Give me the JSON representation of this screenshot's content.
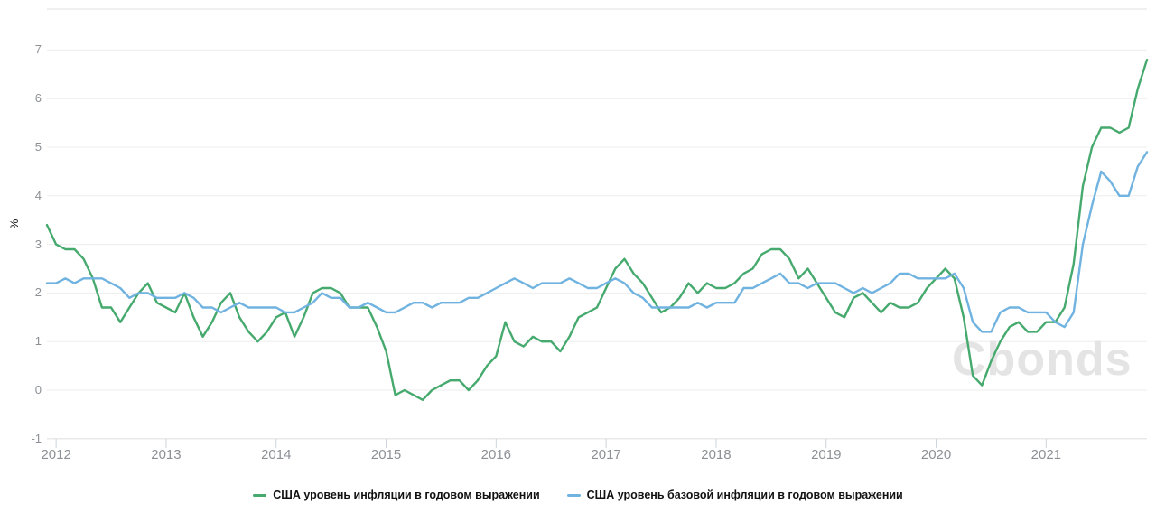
{
  "chart_data": {
    "type": "line",
    "ylabel": "%",
    "x_start": "2011-11",
    "x_end": "2021-11",
    "x_frequency": "monthly",
    "x_tick_labels": [
      "2012",
      "2013",
      "2014",
      "2015",
      "2016",
      "2017",
      "2018",
      "2019",
      "2020",
      "2021"
    ],
    "y_ticks": [
      7,
      6,
      5,
      4,
      3,
      2,
      1,
      0,
      -1
    ],
    "ylim": [
      -1,
      7.85
    ],
    "grid": true,
    "legend_position": "bottom-center",
    "watermark": "Cbonds",
    "series": [
      {
        "name": "США уровень инфляции в годовом выражении",
        "color": "#46a96e",
        "values": [
          3.4,
          3.0,
          2.9,
          2.9,
          2.7,
          2.3,
          1.7,
          1.7,
          1.4,
          1.7,
          2.0,
          2.2,
          1.8,
          1.7,
          1.6,
          2.0,
          1.5,
          1.1,
          1.4,
          1.8,
          2.0,
          1.5,
          1.2,
          1.0,
          1.2,
          1.5,
          1.6,
          1.1,
          1.5,
          2.0,
          2.1,
          2.1,
          2.0,
          1.7,
          1.7,
          1.7,
          1.3,
          0.8,
          -0.1,
          0.0,
          -0.1,
          -0.2,
          0.0,
          0.1,
          0.2,
          0.2,
          0.0,
          0.2,
          0.5,
          0.7,
          1.4,
          1.0,
          0.9,
          1.1,
          1.0,
          1.0,
          0.8,
          1.1,
          1.5,
          1.6,
          1.7,
          2.1,
          2.5,
          2.7,
          2.4,
          2.2,
          1.9,
          1.6,
          1.7,
          1.9,
          2.2,
          2.0,
          2.2,
          2.1,
          2.1,
          2.2,
          2.4,
          2.5,
          2.8,
          2.9,
          2.9,
          2.7,
          2.3,
          2.5,
          2.2,
          1.9,
          1.6,
          1.5,
          1.9,
          2.0,
          1.8,
          1.6,
          1.8,
          1.7,
          1.7,
          1.8,
          2.1,
          2.3,
          2.5,
          2.3,
          1.5,
          0.3,
          0.1,
          0.6,
          1.0,
          1.3,
          1.4,
          1.2,
          1.2,
          1.4,
          1.4,
          1.7,
          2.6,
          4.2,
          5.0,
          5.4,
          5.4,
          5.3,
          5.4,
          6.2,
          6.8
        ]
      },
      {
        "name": "США уровень базовой инфляции в годовом выражении",
        "color": "#70b3e0",
        "values": [
          2.2,
          2.2,
          2.3,
          2.2,
          2.3,
          2.3,
          2.3,
          2.2,
          2.1,
          1.9,
          2.0,
          2.0,
          1.9,
          1.9,
          1.9,
          2.0,
          1.9,
          1.7,
          1.7,
          1.6,
          1.7,
          1.8,
          1.7,
          1.7,
          1.7,
          1.7,
          1.6,
          1.6,
          1.7,
          1.8,
          2.0,
          1.9,
          1.9,
          1.7,
          1.7,
          1.8,
          1.7,
          1.6,
          1.6,
          1.7,
          1.8,
          1.8,
          1.7,
          1.8,
          1.8,
          1.8,
          1.9,
          1.9,
          2.0,
          2.1,
          2.2,
          2.3,
          2.2,
          2.1,
          2.2,
          2.2,
          2.2,
          2.3,
          2.2,
          2.1,
          2.1,
          2.2,
          2.3,
          2.2,
          2.0,
          1.9,
          1.7,
          1.7,
          1.7,
          1.7,
          1.7,
          1.8,
          1.7,
          1.8,
          1.8,
          1.8,
          2.1,
          2.1,
          2.2,
          2.3,
          2.4,
          2.2,
          2.2,
          2.1,
          2.2,
          2.2,
          2.2,
          2.1,
          2.0,
          2.1,
          2.0,
          2.1,
          2.2,
          2.4,
          2.4,
          2.3,
          2.3,
          2.3,
          2.3,
          2.4,
          2.1,
          1.4,
          1.2,
          1.2,
          1.6,
          1.7,
          1.7,
          1.6,
          1.6,
          1.6,
          1.4,
          1.3,
          1.6,
          3.0,
          3.8,
          4.5,
          4.3,
          4.0,
          4.0,
          4.6,
          4.9
        ]
      }
    ]
  },
  "colors": {
    "background": "#ffffff",
    "gridline": "#ededed",
    "top_border": "#f0f0f0",
    "axis_line": "#e2e2e2",
    "tick_mark": "#ccd3dd",
    "axis_label": "#8c9196",
    "legend_text": "#111111",
    "watermark": "#e4e4e4"
  }
}
